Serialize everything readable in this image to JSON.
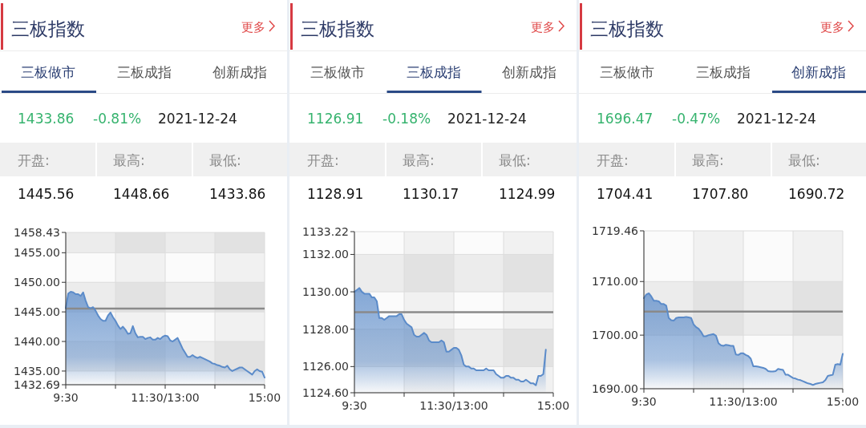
{
  "chart_data": [
    {
      "type": "area",
      "title": "三板指数",
      "annotations": [
        "更多",
        "三板做市",
        "三板成指",
        "创新成指",
        "1433.86",
        "-0.81%",
        "2021-12-24",
        "开盘:",
        "最高:",
        "最低:",
        "1445.56",
        "1448.66",
        "1433.86"
      ],
      "categories": [
        "9:30",
        null,
        null,
        null,
        null,
        null,
        null,
        null,
        null,
        null,
        null,
        null,
        null,
        null,
        null,
        null,
        null,
        null,
        null,
        null,
        null,
        null,
        null,
        null,
        null,
        null,
        null,
        null,
        null,
        null,
        null,
        null,
        null,
        null,
        null,
        null,
        null,
        null,
        null,
        null,
        "11:30/13:00",
        null,
        null,
        null,
        null,
        null,
        null,
        null,
        null,
        null,
        null,
        null,
        null,
        null,
        null,
        null,
        null,
        null,
        null,
        null,
        null,
        null,
        null,
        null,
        null,
        null,
        null,
        null,
        null,
        null,
        null,
        null,
        null,
        null,
        null,
        null,
        null,
        null,
        null,
        null,
        "15:00"
      ],
      "ylim": [
        1432.69,
        1458.43
      ],
      "yticks": [
        1432.69,
        {
          "value": 1435,
          "label": "1435.00"
        },
        {
          "value": 1440,
          "label": "1440.00"
        },
        {
          "value": 1445,
          "label": "1445.00"
        },
        {
          "value": 1450,
          "label": "1450.00"
        },
        {
          "value": 1455,
          "label": "1455.00"
        },
        1458.43
      ],
      "grid": true,
      "ref_lines": [
        {
          "axis": "y",
          "value": 1445.56,
          "color": "#8a8a8a"
        }
      ],
      "series": [
        {
          "color": "#5b8bc9",
          "values": [
            1445.6,
            1448.1,
            1448.4,
            1448.3,
            1448.0,
            1448.0,
            1447.7,
            1448.3,
            1446.9,
            1445.8,
            1445.6,
            1445.8,
            1445.2,
            1444.4,
            1443.8,
            1443.5,
            1443.5,
            1444.4,
            1444.9,
            1444.1,
            1443.5,
            1442.7,
            1442.1,
            1442.5,
            1442.0,
            1441.3,
            1441.4,
            1442.6,
            1441.4,
            1440.7,
            1440.8,
            1440.8,
            1440.4,
            1440.6,
            1440.7,
            1440.3,
            1440.3,
            1440.6,
            1440.4,
            1440.8,
            1441.0,
            1440.9,
            1440.2,
            1440.0,
            1440.3,
            1440.6,
            1439.7,
            1438.8,
            1438.1,
            1437.4,
            1437.4,
            1437.7,
            1437.4,
            1437.2,
            1437.4,
            1437.2,
            1437.0,
            1436.8,
            1436.6,
            1436.3,
            1436.2,
            1436.0,
            1435.9,
            1435.7,
            1435.6,
            1435.9,
            1435.3,
            1435.0,
            1435.2,
            1435.4,
            1435.6,
            1435.6,
            1435.3,
            1435.0,
            1434.7,
            1434.4,
            1435.0,
            1435.3,
            1435.0,
            1434.9,
            1433.9
          ]
        }
      ]
    },
    {
      "type": "area",
      "title": "三板指数",
      "annotations": [
        "更多",
        "三板做市",
        "三板成指",
        "创新成指",
        "1126.91",
        "-0.18%",
        "2021-12-24",
        "开盘:",
        "最高:",
        "最低:",
        "1128.91",
        "1130.17",
        "1124.99"
      ],
      "categories": [
        "9:30",
        null,
        null,
        null,
        null,
        null,
        null,
        null,
        null,
        null,
        null,
        null,
        null,
        null,
        null,
        null,
        null,
        null,
        null,
        null,
        null,
        null,
        null,
        null,
        null,
        null,
        null,
        null,
        null,
        null,
        null,
        null,
        null,
        null,
        null,
        null,
        null,
        null,
        null,
        null,
        "11:30/13:00",
        null,
        null,
        null,
        null,
        null,
        null,
        null,
        null,
        null,
        null,
        null,
        null,
        null,
        null,
        null,
        null,
        null,
        null,
        null,
        null,
        null,
        null,
        null,
        null,
        null,
        null,
        null,
        null,
        null,
        null,
        null,
        null,
        null,
        null,
        null,
        null,
        null,
        null,
        null,
        "15:00"
      ],
      "ylim": [
        1124.6,
        1133.22
      ],
      "yticks": [
        {
          "value": 1124.6,
          "label": "1124.60"
        },
        {
          "value": 1126,
          "label": "1126.00"
        },
        {
          "value": 1128,
          "label": "1128.00"
        },
        {
          "value": 1130,
          "label": "1130.00"
        },
        {
          "value": 1132,
          "label": "1132.00"
        },
        1133.22
      ],
      "grid": true,
      "ref_lines": [
        {
          "axis": "y",
          "value": 1128.91,
          "color": "#8a8a8a"
        }
      ],
      "series": [
        {
          "color": "#5b8bc9",
          "values": [
            1130.0,
            1130.1,
            1130.2,
            1130.0,
            1129.9,
            1129.9,
            1129.9,
            1129.7,
            1129.7,
            1129.5,
            1128.6,
            1128.6,
            1128.5,
            1128.6,
            1128.7,
            1128.7,
            1128.7,
            1128.7,
            1128.8,
            1128.8,
            1128.5,
            1128.3,
            1128.2,
            1128.1,
            1127.7,
            1127.6,
            1127.6,
            1127.7,
            1127.8,
            1127.7,
            1127.4,
            1127.3,
            1127.3,
            1127.3,
            1127.3,
            1127.4,
            1127.3,
            1126.8,
            1126.8,
            1126.9,
            1127.0,
            1127.0,
            1126.9,
            1126.6,
            1126.1,
            1126.0,
            1126.0,
            1125.9,
            1125.9,
            1125.8,
            1125.8,
            1125.8,
            1125.8,
            1125.9,
            1125.8,
            1125.8,
            1125.8,
            1125.6,
            1125.5,
            1125.4,
            1125.4,
            1125.5,
            1125.5,
            1125.4,
            1125.4,
            1125.3,
            1125.3,
            1125.2,
            1125.2,
            1125.3,
            1125.2,
            1125.1,
            1125.1,
            1125.0,
            1125.5,
            1125.5,
            1125.6,
            1126.9,
            null,
            null,
            null
          ]
        }
      ]
    },
    {
      "type": "area",
      "title": "三板指数",
      "annotations": [
        "更多",
        "三板做市",
        "三板成指",
        "创新成指",
        "1696.47",
        "-0.47%",
        "2021-12-24",
        "开盘:",
        "最高:",
        "最低:",
        "1704.41",
        "1707.80",
        "1690.72"
      ],
      "categories": [
        "9:30",
        null,
        null,
        null,
        null,
        null,
        null,
        null,
        null,
        null,
        null,
        null,
        null,
        null,
        null,
        null,
        null,
        null,
        null,
        null,
        null,
        null,
        null,
        null,
        null,
        null,
        null,
        null,
        null,
        null,
        null,
        null,
        null,
        null,
        null,
        null,
        null,
        null,
        null,
        null,
        "11:30/13:00",
        null,
        null,
        null,
        null,
        null,
        null,
        null,
        null,
        null,
        null,
        null,
        null,
        null,
        null,
        null,
        null,
        null,
        null,
        null,
        null,
        null,
        null,
        null,
        null,
        null,
        null,
        null,
        null,
        null,
        null,
        null,
        null,
        null,
        null,
        null,
        null,
        null,
        null,
        null,
        "15:00"
      ],
      "ylim": [
        1690,
        1719.46
      ],
      "yticks": [
        {
          "value": 1690,
          "label": "1690.00"
        },
        {
          "value": 1700,
          "label": "1700.00"
        },
        {
          "value": 1710,
          "label": "1710.00"
        },
        1719.46
      ],
      "grid": true,
      "ref_lines": [
        {
          "axis": "y",
          "value": 1704.41,
          "color": "#8a8a8a"
        }
      ],
      "series": [
        {
          "color": "#5b8bc9",
          "values": [
            1706.9,
            1707.6,
            1707.8,
            1707.2,
            1706.4,
            1706.4,
            1706.3,
            1705.8,
            1705.8,
            1705.5,
            1703.2,
            1702.8,
            1702.7,
            1703.2,
            1703.3,
            1703.3,
            1703.3,
            1703.4,
            1703.3,
            1703.2,
            1702.0,
            1701.5,
            1701.2,
            1700.6,
            1699.8,
            1699.8,
            1700.0,
            1700.1,
            1700.2,
            1699.9,
            1698.5,
            1698.1,
            1698.0,
            1698.2,
            1698.1,
            1698.0,
            1698.0,
            1696.4,
            1696.3,
            1696.6,
            1696.6,
            1696.3,
            1696.1,
            1695.6,
            1694.2,
            1694.2,
            1694.1,
            1694.0,
            1693.9,
            1693.7,
            1693.3,
            1693.2,
            1693.2,
            1693.3,
            1693.7,
            1693.6,
            1693.5,
            1692.6,
            1692.6,
            1692.3,
            1692.0,
            1691.9,
            1691.7,
            1691.6,
            1691.4,
            1691.2,
            1691.0,
            1690.9,
            1690.7,
            1690.9,
            1691.0,
            1691.1,
            1691.2,
            1691.6,
            1692.4,
            1692.5,
            1692.6,
            1694.5,
            1694.6,
            1694.5,
            1696.5
          ]
        }
      ]
    }
  ]
}
